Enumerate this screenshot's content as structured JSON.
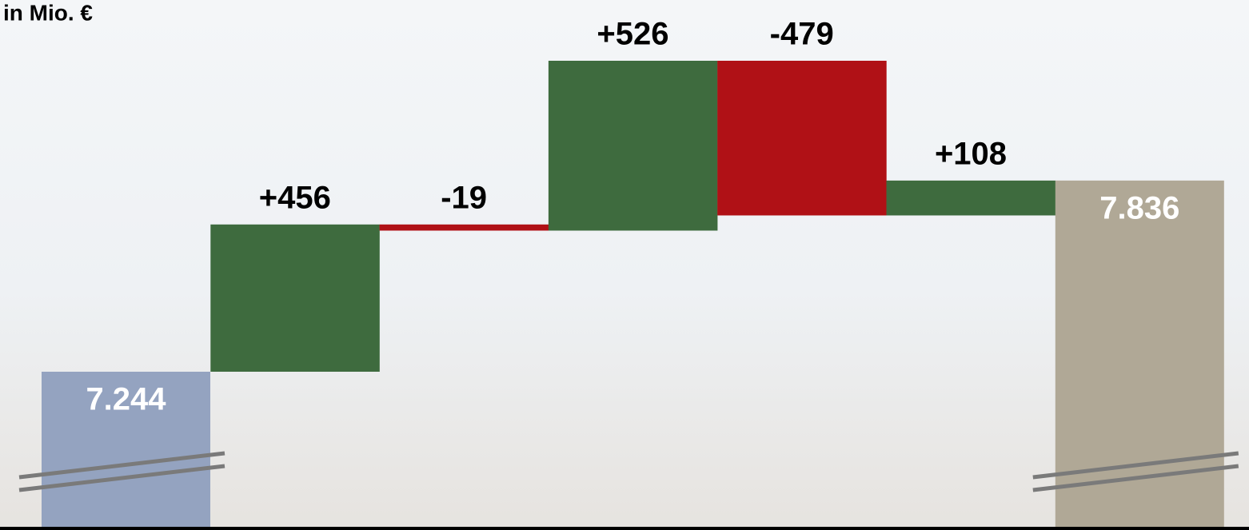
{
  "chart_data": {
    "type": "waterfall",
    "title": "in Mio. €",
    "values": [
      7244,
      456,
      -19,
      526,
      -479,
      108,
      7836
    ],
    "value_labels": [
      "7.244",
      "+456",
      "-19",
      "+526",
      "-479",
      "+108",
      "7.836"
    ],
    "totals": [
      true,
      false,
      false,
      false,
      false,
      false,
      true
    ],
    "colors": [
      "#94a3c0",
      "#3e6b3e",
      "#b01116",
      "#3e6b3e",
      "#b01116",
      "#3e6b3e",
      "#b0a896"
    ]
  }
}
